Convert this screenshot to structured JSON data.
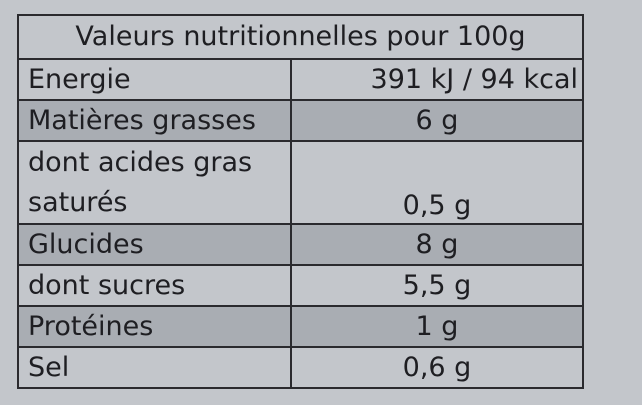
{
  "title": "Valeurs nutritionnelles pour 100g",
  "rows": [
    {
      "label": "Energie",
      "value": "391 kJ / 94 kcal"
    },
    {
      "label": "Matières grasses",
      "value": "6 g"
    },
    {
      "label_line1": "dont acides gras",
      "label_line2": "saturés",
      "value": "0,5 g"
    },
    {
      "label": "Glucides",
      "value": "8 g"
    },
    {
      "label": "dont sucres",
      "value": "5,5 g"
    },
    {
      "label": "Protéines",
      "value": "1 g"
    },
    {
      "label": "Sel",
      "value": "0,6 g"
    }
  ]
}
